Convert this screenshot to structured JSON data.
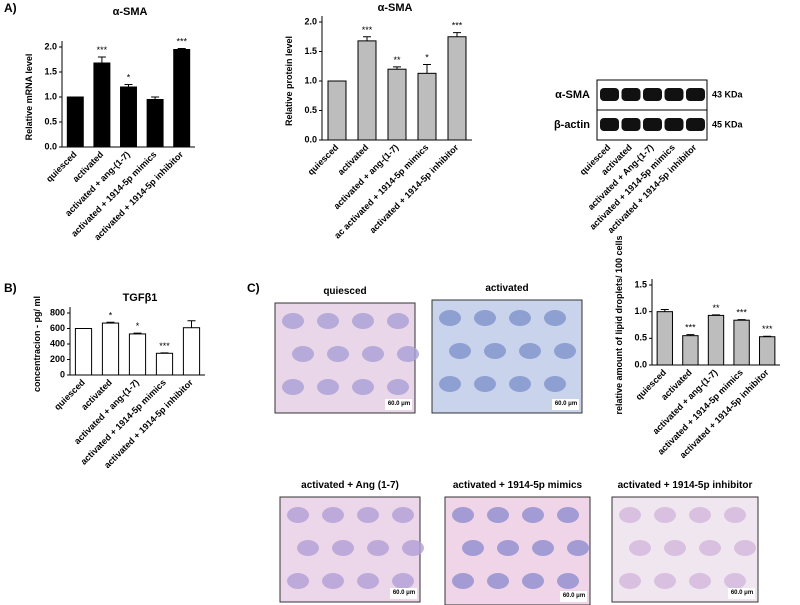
{
  "chart_data": [
    {
      "type": "bar",
      "title": "α-SMA",
      "y_label": "Relative mRNA level",
      "color": "#000000",
      "categories": [
        "quiesced",
        "activated",
        "activated + ang-(1-7)",
        "activated + 1914-5p mimics",
        "activated + 1914-5p inhibitor"
      ],
      "values": [
        1.0,
        1.68,
        1.2,
        0.95,
        1.95
      ],
      "errors": [
        0,
        0.12,
        0.05,
        0.05,
        0.02
      ],
      "annotations": [
        null,
        "***",
        "*",
        null,
        "***"
      ],
      "ylim": [
        0,
        2.0
      ],
      "yticks": [
        {
          "value": 0,
          "label": "0.0"
        },
        {
          "value": 0.5,
          "label": "0.5"
        },
        {
          "value": 1,
          "label": "1.0"
        },
        {
          "value": 1.5,
          "label": "1.5"
        },
        {
          "value": 2,
          "label": "2.0"
        }
      ]
    },
    {
      "type": "bar",
      "title": "α-SMA",
      "y_label": "Relative protein level",
      "color": "#bdbdbd",
      "categories": [
        "quiesced",
        "activated",
        "activated + ang-(1-7)",
        "ac activated + 1914-5p mimics",
        "activated + 1914-5p inhibitor"
      ],
      "values": [
        1.0,
        1.68,
        1.2,
        1.13,
        1.75
      ],
      "errors": [
        0,
        0.07,
        0.04,
        0.15,
        0.07
      ],
      "annotations": [
        null,
        "***",
        "**",
        "*",
        "***"
      ],
      "ylim": [
        0,
        2.0
      ],
      "yticks": [
        {
          "value": 0,
          "label": "0.0"
        },
        {
          "value": 0.5,
          "label": "0.5"
        },
        {
          "value": 1,
          "label": "1.0"
        },
        {
          "value": 1.5,
          "label": "1.5"
        },
        {
          "value": 2,
          "label": "2.0"
        }
      ]
    },
    {
      "type": "bar",
      "title": "TGFβ1",
      "y_label": "concentracion - pg/ ml",
      "color": "#ffffff",
      "categories": [
        "quiesced",
        "activated",
        "activated + ang-(1-7)",
        "activated + 1914-5p mimics",
        "activated + 1914-5p inhibitor"
      ],
      "values": [
        600,
        670,
        530,
        280,
        610
      ],
      "errors": [
        0,
        10,
        10,
        5,
        90
      ],
      "annotations": [
        null,
        "*",
        "*",
        "***",
        null
      ],
      "ylim": [
        0,
        800
      ],
      "yticks": [
        0,
        200,
        400,
        600,
        800
      ]
    },
    {
      "type": "bar",
      "y_label": "relative amount of lipid droplets/ 100 cells",
      "color": "#bdbdbd",
      "categories": [
        "quiesced",
        "activated",
        "activated + ang-(1-7)",
        "activated + 1914-5p mimics",
        "activated + 1914-5p inhibitor"
      ],
      "values": [
        1.0,
        0.55,
        0.93,
        0.84,
        0.53
      ],
      "errors": [
        0.04,
        0.02,
        0.01,
        0.01,
        0.01
      ],
      "annotations": [
        null,
        "***",
        "**",
        "***",
        "***"
      ],
      "ylim": [
        0,
        1.5
      ],
      "yticks": [
        {
          "value": 0,
          "label": "0.0"
        },
        {
          "value": 0.5,
          "label": "0.5"
        },
        {
          "value": 1,
          "label": "1.0"
        },
        {
          "value": 1.5,
          "label": "1.5"
        }
      ]
    }
  ],
  "panel_labels": [
    "A)",
    "B)",
    "C)"
  ],
  "blot": {
    "rows": [
      "α-SMA",
      "β-actin"
    ],
    "sizes": [
      "43 KDa",
      "45 KDa"
    ],
    "lanes": [
      "quiesced",
      "activated",
      "activated + Ang-(1-7)",
      "activated + 1914-5p mimics",
      "activated + 1914-5p inhibitor"
    ]
  },
  "micrographs": [
    {
      "title": "quiesced",
      "scale": "60.0 μm"
    },
    {
      "title": "activated",
      "scale": "60.0 μm"
    },
    {
      "title": "activated + Ang (1-7)",
      "scale": "60.0 μm"
    },
    {
      "title": "activated + 1914-5p  mimics",
      "scale": "60.0 μm"
    },
    {
      "title": "activated + 1914-5p inhibitor",
      "scale": "60.0 μm"
    }
  ]
}
